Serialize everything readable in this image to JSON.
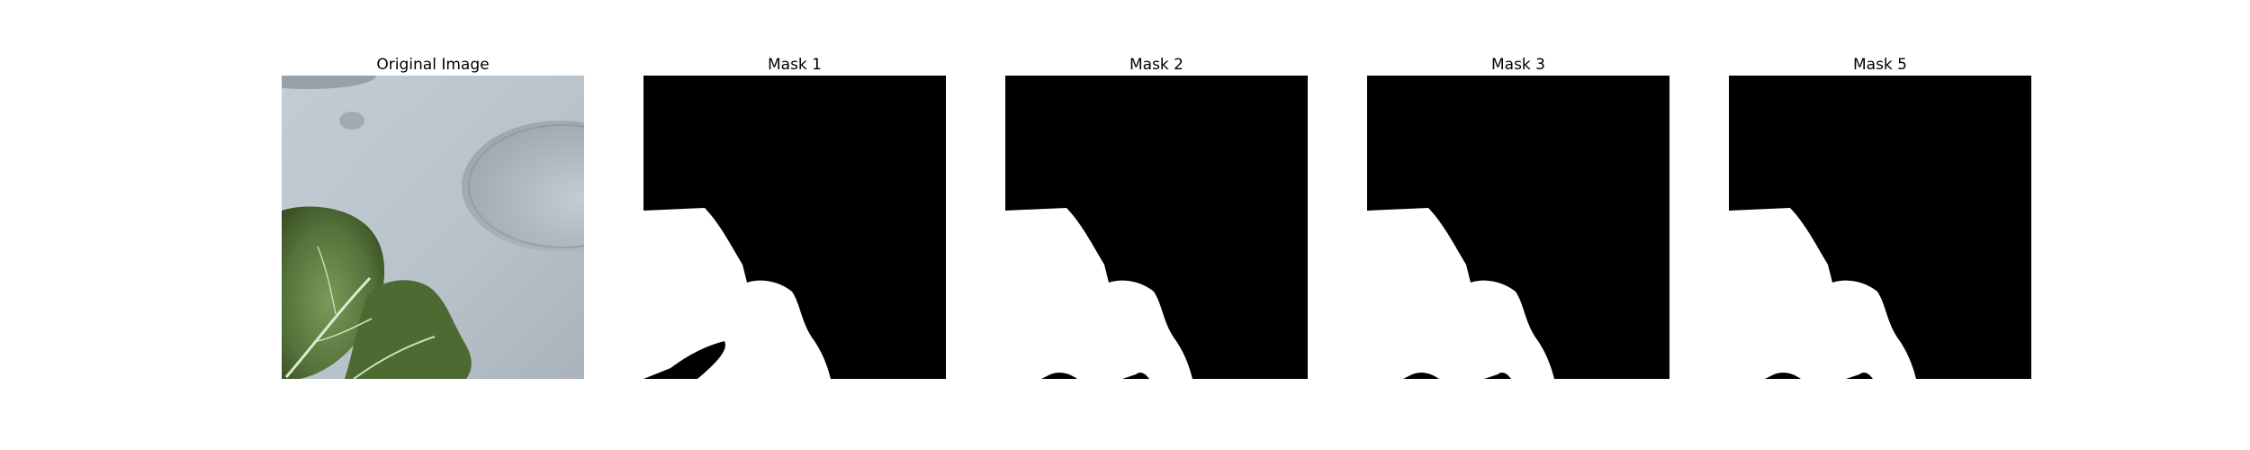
{
  "panels": [
    {
      "title": "Original Image"
    },
    {
      "title": "Mask 1"
    },
    {
      "title": "Mask 2"
    },
    {
      "title": "Mask 3"
    },
    {
      "title": "Mask 5"
    }
  ],
  "colors": {
    "background": "#ffffff",
    "mask_background": "#000000",
    "mask_foreground": "#ffffff",
    "surface": "#b9c3cb",
    "leaf_dark": "#3f5a2c",
    "leaf_mid": "#5f7e43"
  }
}
